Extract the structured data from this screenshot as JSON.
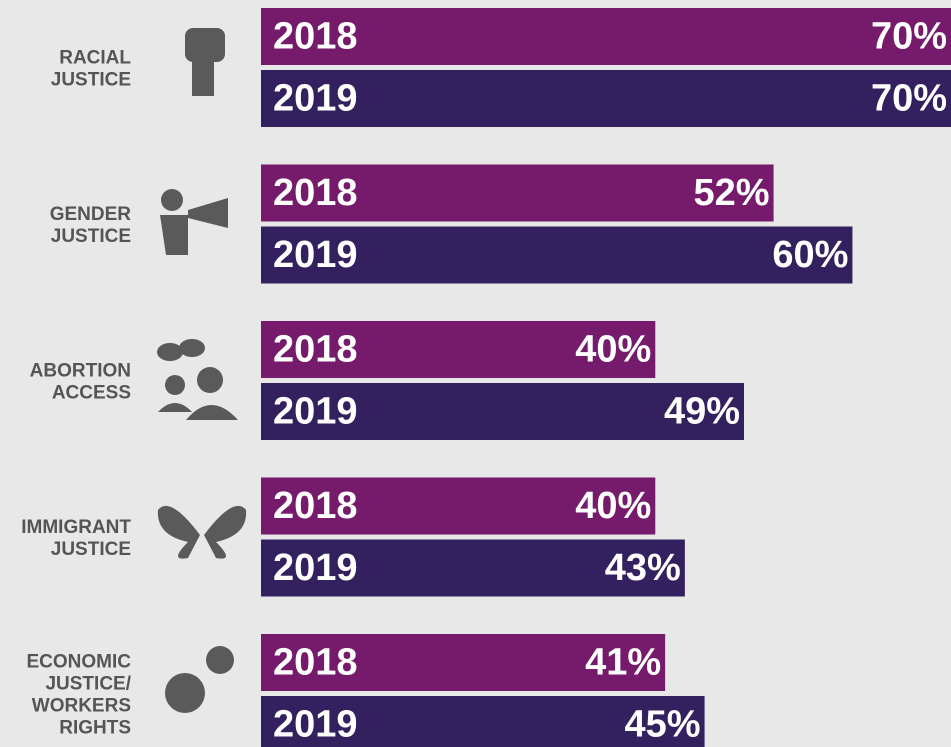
{
  "chart_data": {
    "type": "bar",
    "orientation": "horizontal",
    "categories": [
      "RACIAL JUSTICE",
      "GENDER JUSTICE",
      "ABORTION ACCESS",
      "IMMIGRANT JUSTICE",
      "ECONOMIC JUSTICE/ WORKERS RIGHTS"
    ],
    "series": [
      {
        "name": "2018",
        "color": "#761a6c",
        "values": [
          70,
          52,
          40,
          40,
          41
        ],
        "value_labels": [
          "70%",
          "52%",
          "40%",
          "40%",
          "41%"
        ]
      },
      {
        "name": "2019",
        "color": "#33205f",
        "values": [
          70,
          60,
          49,
          43,
          45
        ],
        "value_labels": [
          "70%",
          "60%",
          "49%",
          "43%",
          "45%"
        ]
      }
    ]
  }
}
